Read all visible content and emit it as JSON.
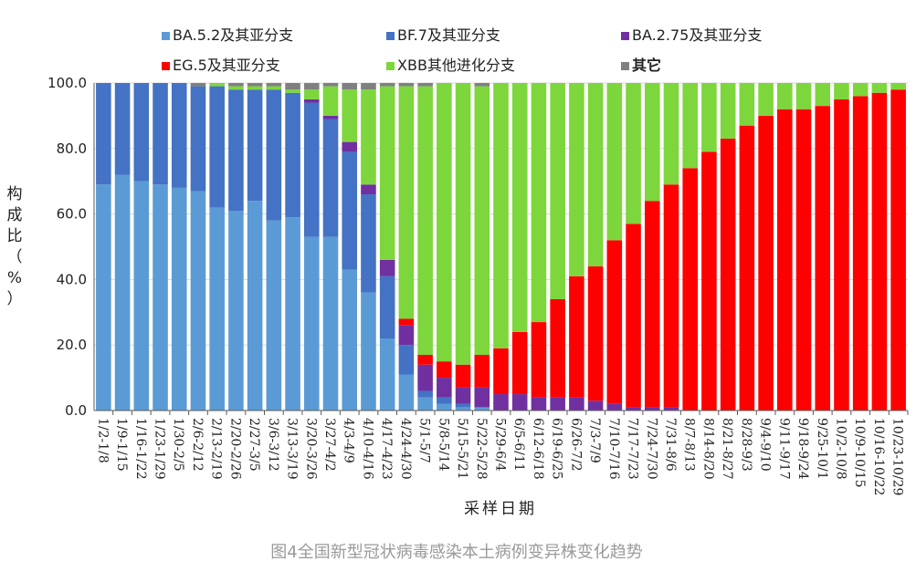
{
  "chart_data": {
    "type": "stacked-bar",
    "caption": "图4全国新型冠状病毒感染本土病例变异株变化趋势",
    "xlabel": "采样日期",
    "ylabel_chars": [
      "构",
      "成",
      "比",
      "（",
      "%",
      "）"
    ],
    "ylim": [
      0,
      100
    ],
    "yticks": [
      "0.0",
      "20.0",
      "40.0",
      "60.0",
      "80.0",
      "100.0"
    ],
    "legend_position": "top",
    "categories": [
      "1/2-1/8",
      "1/9-1/15",
      "1/16-1/22",
      "1/23-1/29",
      "1/30-2/5",
      "2/6-2/12",
      "2/13-2/19",
      "2/20-2/26",
      "2/27-3/5",
      "3/6-3/12",
      "3/13-3/19",
      "3/20-3/26",
      "3/27-4/2",
      "4/3-4/9",
      "4/10-4/16",
      "4/17-4/23",
      "4/24-4/30",
      "5/1-5/7",
      "5/8-5/14",
      "5/15-5/21",
      "5/22-5/28",
      "5/29-6/4",
      "6/5-6/11",
      "6/12-6/18",
      "6/19-6/25",
      "6/26-7/2",
      "7/3-7/9",
      "7/10-7/16",
      "7/17-7/23",
      "7/24-7/30",
      "7/31-8/6",
      "8/7-8/13",
      "8/14-8/20",
      "8/21-8/27",
      "8/28-9/3",
      "9/4-9/10",
      "9/11-9/17",
      "9/18-9/24",
      "9/25-10/1",
      "10/2-10/8",
      "10/9-10/15",
      "10/16-10/22",
      "10/23-10/29"
    ],
    "series": [
      {
        "name": "BA.5.2及其亚分支",
        "color": "#5b9bd5",
        "values": [
          69,
          72,
          70,
          69,
          68,
          67,
          62,
          61,
          64,
          58,
          59,
          53,
          53,
          43,
          36,
          22,
          11,
          4,
          2,
          1,
          1,
          0,
          0,
          0,
          0,
          0,
          0,
          0,
          0,
          0,
          0,
          0,
          0,
          0,
          0,
          0,
          0,
          0,
          0,
          0,
          0,
          0,
          0
        ]
      },
      {
        "name": "BF.7及其亚分支",
        "color": "#4472c4",
        "values": [
          31,
          28,
          30,
          31,
          32,
          32,
          37,
          37,
          34,
          40,
          38,
          41,
          36,
          36,
          30,
          19,
          9,
          2,
          2,
          1,
          0,
          0,
          0,
          0,
          0,
          0,
          0,
          0,
          0,
          0,
          0,
          0,
          0,
          0,
          0,
          0,
          0,
          0,
          0,
          0,
          0,
          0,
          0
        ]
      },
      {
        "name": "BA.2.75及其亚分支",
        "color": "#7030a0",
        "values": [
          0,
          0,
          0,
          0,
          0,
          0,
          0,
          0,
          0,
          0,
          0,
          1,
          1,
          3,
          3,
          5,
          6,
          8,
          6,
          5,
          6,
          5,
          5,
          4,
          4,
          4,
          3,
          2,
          1,
          1,
          1,
          0,
          0,
          0,
          0,
          0,
          0,
          0,
          0,
          0,
          0,
          0,
          0
        ]
      },
      {
        "name": "EG.5及其亚分支",
        "color": "#ff0000",
        "values": [
          0,
          0,
          0,
          0,
          0,
          0,
          0,
          0,
          0,
          0,
          0,
          0,
          0,
          0,
          0,
          0,
          2,
          3,
          5,
          7,
          10,
          14,
          19,
          23,
          30,
          37,
          41,
          50,
          56,
          63,
          68,
          74,
          79,
          83,
          87,
          90,
          92,
          92,
          93,
          95,
          96,
          97,
          98
        ]
      },
      {
        "name": "XBB其他进化分支",
        "color": "#7dd63c",
        "values": [
          0,
          0,
          0,
          0,
          0,
          0,
          1,
          1,
          1,
          1,
          1,
          3,
          9,
          16,
          29,
          53,
          71,
          82,
          85,
          86,
          82,
          81,
          76,
          73,
          66,
          59,
          56,
          48,
          43,
          36,
          31,
          26,
          21,
          17,
          13,
          10,
          8,
          8,
          7,
          5,
          4,
          3,
          2
        ]
      },
      {
        "name": "其它",
        "color": "#808080",
        "values": [
          0,
          0,
          0,
          0,
          0,
          1,
          0,
          1,
          1,
          1,
          2,
          2,
          1,
          2,
          2,
          1,
          1,
          1,
          0,
          0,
          1,
          0,
          0,
          0,
          0,
          0,
          0,
          0,
          0,
          0,
          0,
          0,
          0,
          0,
          0,
          0,
          0,
          0,
          0,
          0,
          0,
          0,
          0
        ]
      }
    ]
  }
}
